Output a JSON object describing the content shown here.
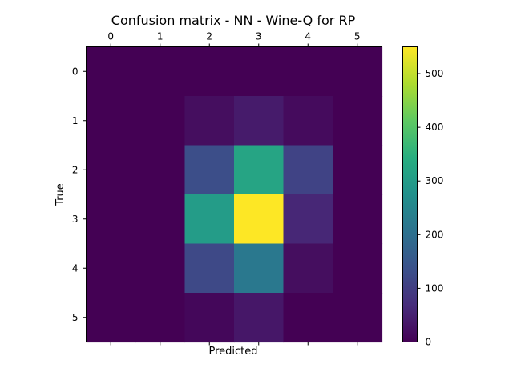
{
  "chart_data": {
    "type": "heatmap",
    "title": "Confusion matrix - NN - Wine-Q for RP",
    "xlabel": "Predicted",
    "ylabel": "True",
    "x_ticks": [
      "0",
      "1",
      "2",
      "3",
      "4",
      "5"
    ],
    "y_ticks": [
      "0",
      "1",
      "2",
      "3",
      "4",
      "5"
    ],
    "values": [
      [
        0,
        0,
        0,
        0,
        0,
        0
      ],
      [
        0,
        0,
        20,
        40,
        15,
        0
      ],
      [
        0,
        0,
        130,
        320,
        110,
        0
      ],
      [
        0,
        0,
        300,
        550,
        60,
        0
      ],
      [
        0,
        0,
        120,
        220,
        20,
        0
      ],
      [
        0,
        0,
        10,
        35,
        0,
        0
      ]
    ],
    "colormap": "viridis",
    "colorbar": {
      "min": 0,
      "max": 550,
      "ticks": [
        0,
        100,
        200,
        300,
        400,
        500
      ]
    }
  }
}
